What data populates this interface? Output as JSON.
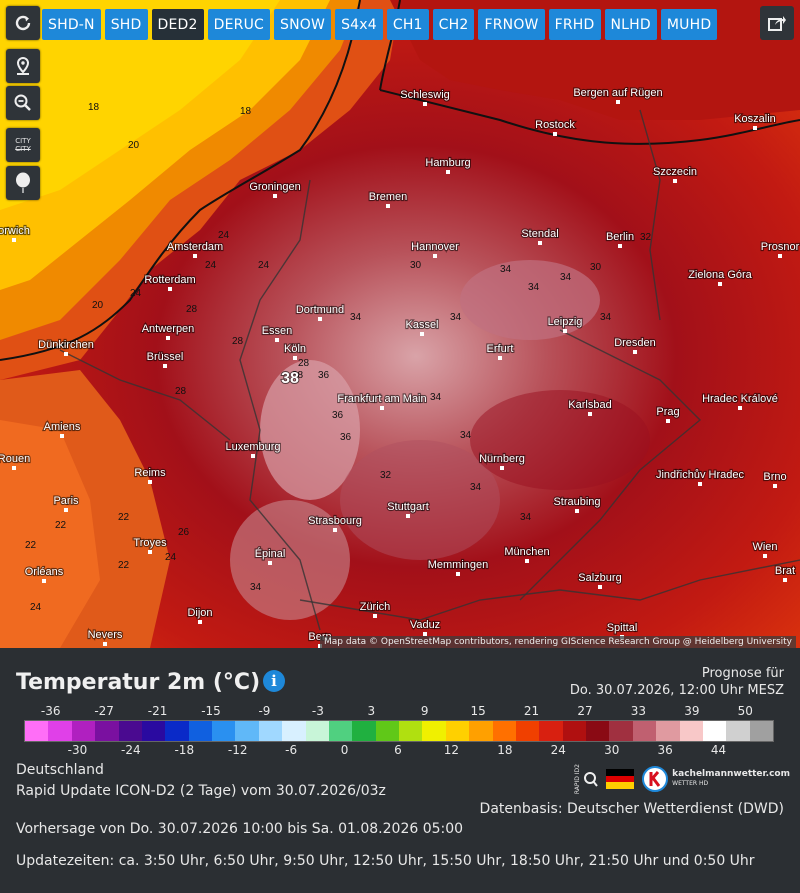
{
  "toolbar": {
    "tabs": [
      {
        "label": "SHD-N",
        "active": false
      },
      {
        "label": "SHD",
        "active": false
      },
      {
        "label": "DED2",
        "active": true
      },
      {
        "label": "DERUC",
        "active": false
      },
      {
        "label": "SNOW",
        "active": false
      },
      {
        "label": "S4x4",
        "active": false
      },
      {
        "label": "CH1",
        "active": false
      },
      {
        "label": "CH2",
        "active": false
      },
      {
        "label": "FRNOW",
        "active": false
      },
      {
        "label": "FRHD",
        "active": false
      },
      {
        "label": "NLHD",
        "active": false
      },
      {
        "label": "MUHD",
        "active": false
      }
    ],
    "tools": [
      "refresh-icon",
      "location-pin-icon",
      "zoom-icon",
      "city-labels-icon",
      "balloon-icon"
    ],
    "city_label": "CITY"
  },
  "map": {
    "attribution": "Map data © OpenStreetMap contributors, rendering GIScience Research Group @ Heidelberg University",
    "cities": [
      {
        "name": "Schleswig"
      },
      {
        "name": "Rostock"
      },
      {
        "name": "Bergen auf Rügen"
      },
      {
        "name": "Koszalin"
      },
      {
        "name": "Hamburg"
      },
      {
        "name": "Szczecin"
      },
      {
        "name": "Groningen"
      },
      {
        "name": "Bremen"
      },
      {
        "name": "Amsterdam"
      },
      {
        "name": "Stendal"
      },
      {
        "name": "Hannover"
      },
      {
        "name": "Berlin"
      },
      {
        "name": "Prosnor"
      },
      {
        "name": "Rotterdam"
      },
      {
        "name": "Zielona Góra"
      },
      {
        "name": "Dortmund"
      },
      {
        "name": "Antwerpen"
      },
      {
        "name": "Essen"
      },
      {
        "name": "Kassel"
      },
      {
        "name": "Leipzig"
      },
      {
        "name": "Dünkirchen"
      },
      {
        "name": "Brüssel"
      },
      {
        "name": "Köln"
      },
      {
        "name": "Erfurt"
      },
      {
        "name": "Dresden"
      },
      {
        "name": "Frankfurt am Main"
      },
      {
        "name": "Karlsbad"
      },
      {
        "name": "Hradec Králové"
      },
      {
        "name": "Amiens"
      },
      {
        "name": "Luxemburg"
      },
      {
        "name": "Prag"
      },
      {
        "name": "Nürnberg"
      },
      {
        "name": "Jindřichův Hradec"
      },
      {
        "name": "Brno"
      },
      {
        "name": "Reims"
      },
      {
        "name": "Paris"
      },
      {
        "name": "Straubing"
      },
      {
        "name": "Strasbourg"
      },
      {
        "name": "Stuttgart"
      },
      {
        "name": "Troyes"
      },
      {
        "name": "Wien"
      },
      {
        "name": "Épinal"
      },
      {
        "name": "München"
      },
      {
        "name": "Memmingen"
      },
      {
        "name": "Orléans"
      },
      {
        "name": "Salzburg"
      },
      {
        "name": "Dijon"
      },
      {
        "name": "Zürich"
      },
      {
        "name": "Vaduz"
      },
      {
        "name": "Nevers"
      },
      {
        "name": "Bern"
      },
      {
        "name": "Spittal"
      },
      {
        "name": "Brat"
      },
      {
        "name": "Rouen"
      },
      {
        "name": "orwich"
      }
    ],
    "temp_labels": [
      "18",
      "18",
      "20",
      "20",
      "24",
      "24",
      "24",
      "24",
      "28",
      "28",
      "28",
      "28",
      "30",
      "34",
      "34",
      "34",
      "34",
      "34",
      "34",
      "34",
      "34",
      "34",
      "34",
      "36",
      "36",
      "38",
      "22",
      "22",
      "22",
      "22",
      "24",
      "26",
      "24",
      "30",
      "32",
      "32",
      "36",
      "34"
    ],
    "highlight_temp": "38"
  },
  "panel": {
    "title": "Temperatur 2m (°C)",
    "info_symbol": "i",
    "forecast_label": "Prognose für",
    "forecast_time": "Do. 30.07.2026, 12:00 Uhr MESZ",
    "scale_top": [
      "-36",
      "-27",
      "-21",
      "-15",
      "-9",
      "-3",
      "3",
      "9",
      "15",
      "21",
      "27",
      "33",
      "39",
      "50"
    ],
    "scale_bottom": [
      "-30",
      "-24",
      "-18",
      "-12",
      "-6",
      "0",
      "6",
      "12",
      "18",
      "24",
      "30",
      "36",
      "44"
    ],
    "region": "Deutschland",
    "model": "Rapid Update ICON-D2 (2 Tage) vom 30.07.2026/03z",
    "data_source": "Datenbasis: Deutscher Wetterdienst (DWD)",
    "forecast_range": "Vorhersage von Do. 30.07.2026 10:00 bis Sa. 01.08.2026 05:00",
    "update_times": "Updatezeiten: ca. 3:50 Uhr, 6:50 Uhr, 9:50 Uhr, 12:50 Uhr, 15:50 Uhr, 18:50 Uhr, 21:50 Uhr und 0:50 Uhr",
    "logo_text": "kachelmannwetter.com",
    "logo_sub": "WETTER HD",
    "rapid_text": "RAPID ID2",
    "scale_colors": [
      "#ff6ef7",
      "#e040e8",
      "#b020c0",
      "#7a10a0",
      "#4a0a90",
      "#2a0aa0",
      "#0a2ac8",
      "#1060e0",
      "#2a90f0",
      "#60b8f8",
      "#a0d8ff",
      "#d8f0ff",
      "#c8f5d8",
      "#50d080",
      "#20b040",
      "#60c818",
      "#b0e010",
      "#f0f000",
      "#ffd000",
      "#ffa000",
      "#ff7000",
      "#f04000",
      "#d82010",
      "#b01010",
      "#8a0a14",
      "#a03040",
      "#c06070",
      "#e09aa0",
      "#f8c8c8",
      "#ffffff",
      "#d0d0d0",
      "#a0a0a0"
    ]
  }
}
